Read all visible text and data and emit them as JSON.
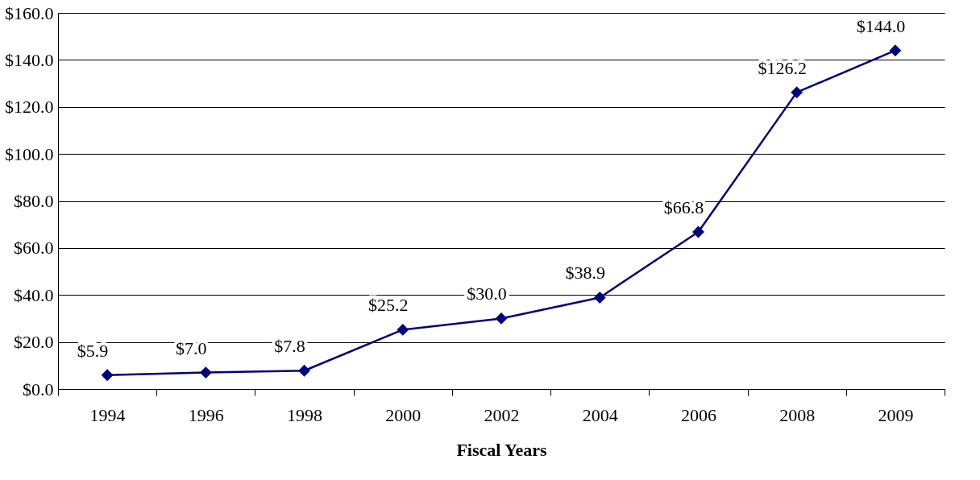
{
  "chart_data": {
    "type": "line",
    "xlabel": "Fiscal Years",
    "categories": [
      "1994",
      "1996",
      "1998",
      "2000",
      "2002",
      "2004",
      "2006",
      "2008",
      "2009"
    ],
    "series": [
      {
        "color": "#000080",
        "values": [
          5.9,
          7.0,
          7.8,
          25.2,
          30.0,
          38.9,
          66.8,
          126.2,
          144.0
        ],
        "value_labels": [
          "$5.9",
          "$7.0",
          "$7.8",
          "$25.2",
          "$30.0",
          "$38.9",
          "$66.8",
          "$126.2",
          "$144.0"
        ]
      }
    ],
    "ylim": [
      0,
      160
    ],
    "yticks": [
      {
        "value": 0,
        "label": "$0.0"
      },
      {
        "value": 20,
        "label": "$20.0"
      },
      {
        "value": 40,
        "label": "$40.0"
      },
      {
        "value": 60,
        "label": "$60.0"
      },
      {
        "value": 80,
        "label": "$80.0"
      },
      {
        "value": 100,
        "label": "$100.0"
      },
      {
        "value": 120,
        "label": "$120.0"
      },
      {
        "value": 140,
        "label": "$140.0"
      },
      {
        "value": 160,
        "label": "$160.0"
      }
    ],
    "grid": "y",
    "marker": "diamond",
    "line_style": "solid"
  }
}
